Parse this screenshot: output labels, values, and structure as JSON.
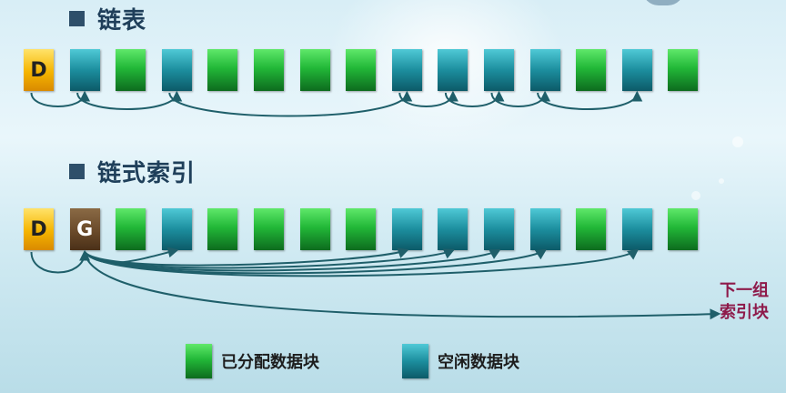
{
  "sections": {
    "linked": {
      "title": "链表"
    },
    "indexed": {
      "title": "链式索引"
    }
  },
  "blocks": {
    "linked": [
      "D",
      "free",
      "alloc",
      "free",
      "alloc",
      "alloc",
      "alloc",
      "alloc",
      "free",
      "free",
      "free",
      "free",
      "alloc",
      "free",
      "alloc"
    ],
    "indexed": [
      "D",
      "G",
      "alloc",
      "free",
      "alloc",
      "alloc",
      "alloc",
      "alloc",
      "free",
      "free",
      "free",
      "free",
      "alloc",
      "free",
      "alloc"
    ]
  },
  "block_labels": {
    "D": "D",
    "G": "G"
  },
  "next_group_label": {
    "line1": "下一组",
    "line2": "索引块"
  },
  "legend": {
    "allocated": "已分配数据块",
    "free": "空闲数据块"
  },
  "colors": {
    "allocated": "#22b838",
    "free": "#1c8e9e",
    "directory": "#f5b400",
    "index": "#6a4a2a",
    "arrow": "#1f5f6a",
    "next_label": "#8e1a4a"
  }
}
